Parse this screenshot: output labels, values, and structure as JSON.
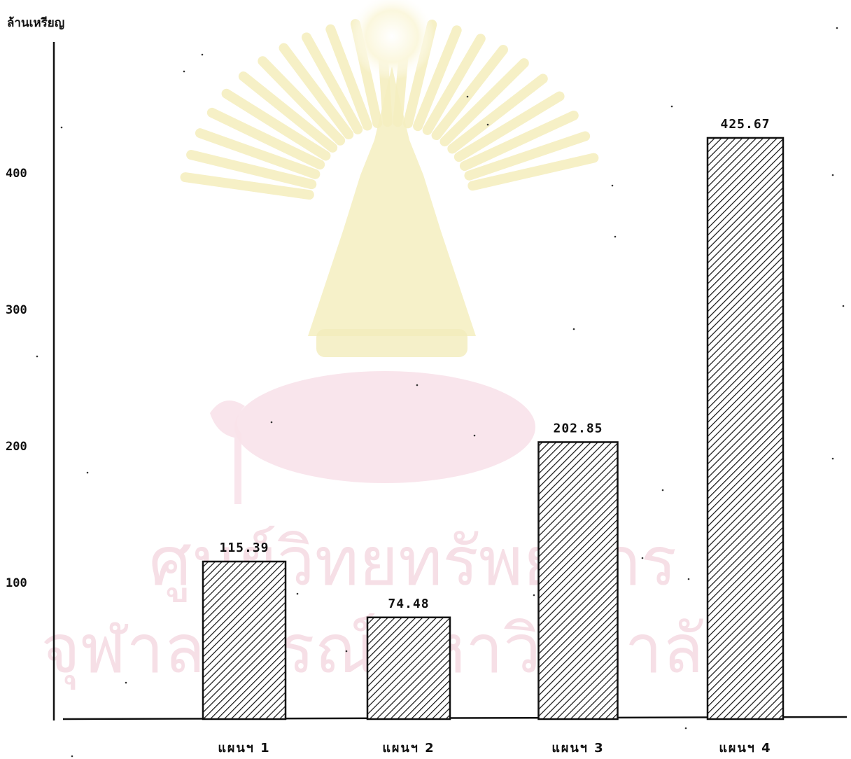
{
  "chart_data": {
    "type": "bar",
    "ylabel": "ล้านเหรียญ",
    "categories": [
      "แผนฯ 1",
      "แผนฯ 2",
      "แผนฯ 3",
      "แผนฯ 4"
    ],
    "values": [
      115.39,
      74.48,
      202.85,
      425.67
    ],
    "data_labels": [
      "115.39",
      "74.48",
      "202.85",
      "425.67"
    ],
    "yticks": [
      100,
      200,
      300,
      400
    ],
    "ylim": [
      0,
      500
    ],
    "grid": false,
    "bar_fill": "diagonal-hatch",
    "colors": {
      "ink": "#111111",
      "background": "#ffffff"
    }
  },
  "watermark": {
    "line1": "ศูนย์วิทยทรัพยากร",
    "line2": "จุฬาลงกรณ์มหาวิทยาลัย",
    "colors": {
      "text": "#f6dfe6",
      "crest": "#f5efbf",
      "base": "#f8e2ea"
    }
  }
}
